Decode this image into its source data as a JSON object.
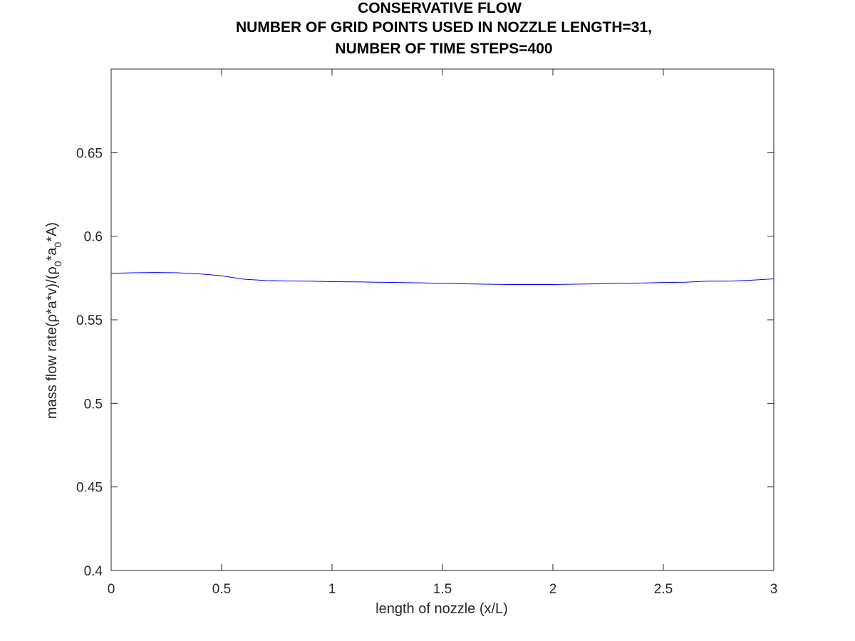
{
  "chart_data": {
    "type": "line",
    "title_lines": [
      "CONSERVATIVE FLOW",
      "NUMBER OF GRID POINTS USED IN NOZZLE LENGTH=31,",
      "NUMBER OF TIME STEPS=400"
    ],
    "xlabel": "length of nozzle (x/L)",
    "ylabel": {
      "prefix": "mass flow rate(ρ*a*v)/(ρ",
      "sub1": "0",
      "mid": "*a",
      "sub2": "0",
      "suffix": "*A)"
    },
    "xlim": [
      0,
      3
    ],
    "ylim": [
      0.4,
      0.7
    ],
    "x_ticks": [
      "0",
      "0.5",
      "1",
      "1.5",
      "2",
      "2.5",
      "3"
    ],
    "y_ticks": [
      "0.4",
      "0.45",
      "0.5",
      "0.55",
      "0.6",
      "0.65"
    ],
    "grid": false,
    "series": [
      {
        "color": "#0000ff",
        "x": [
          0,
          0.1,
          0.2,
          0.3,
          0.4,
          0.5,
          0.6,
          0.7,
          0.8,
          0.9,
          1.0,
          1.1,
          1.2,
          1.3,
          1.4,
          1.5,
          1.6,
          1.7,
          1.8,
          1.9,
          2.0,
          2.1,
          2.2,
          2.3,
          2.4,
          2.5,
          2.6,
          2.7,
          2.8,
          2.9,
          3.0
        ],
        "y": [
          0.5778,
          0.5781,
          0.5783,
          0.5781,
          0.5775,
          0.5763,
          0.5743,
          0.5735,
          0.5732,
          0.5731,
          0.5728,
          0.5727,
          0.5725,
          0.5723,
          0.5721,
          0.5718,
          0.5715,
          0.5713,
          0.5711,
          0.5711,
          0.5711,
          0.5713,
          0.5715,
          0.5718,
          0.572,
          0.5723,
          0.5725,
          0.5731,
          0.5731,
          0.5737,
          0.5745
        ]
      }
    ]
  }
}
